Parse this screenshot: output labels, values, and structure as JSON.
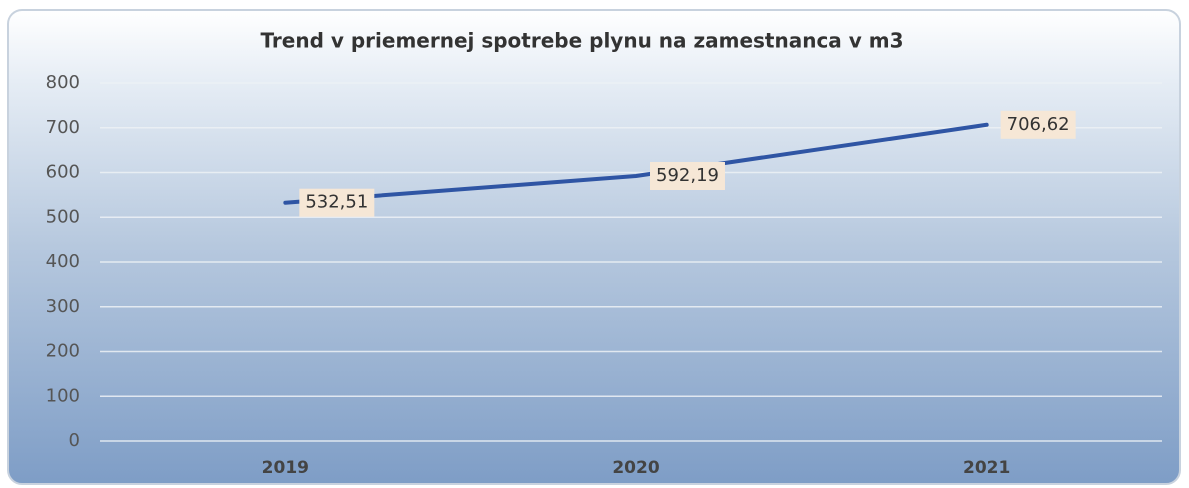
{
  "chart_data": {
    "type": "line",
    "title": "Trend v priemernej spotrebe plynu na zamestnanca v m3",
    "categories": [
      "2019",
      "2020",
      "2021"
    ],
    "values": [
      532.51,
      592.19,
      706.62
    ],
    "value_labels": [
      "532,51",
      "592,19",
      "706,62"
    ],
    "color": "#2f55a4",
    "ylim": [
      0,
      800
    ],
    "yticks": [
      0,
      100,
      200,
      300,
      400,
      500,
      600,
      700,
      800
    ],
    "grid": true
  }
}
